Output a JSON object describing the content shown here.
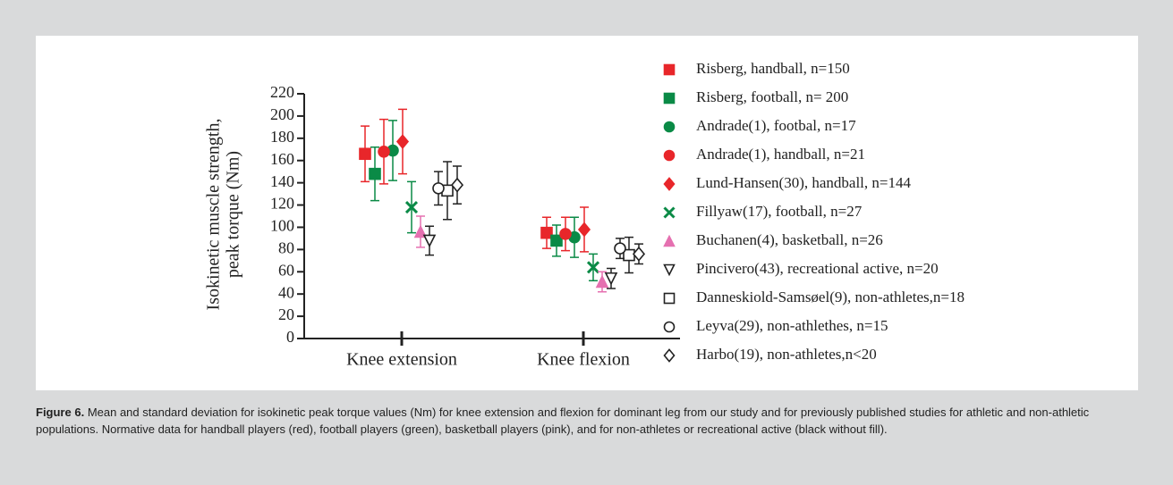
{
  "chart_data": {
    "type": "scatter",
    "y_label": [
      "Isokinetic muscle strength,",
      "peak torque (Nm)"
    ],
    "categories": [
      "Knee extension",
      "Knee flexion"
    ],
    "ylim": [
      0,
      220
    ],
    "yticks": [
      0,
      20,
      40,
      60,
      80,
      100,
      120,
      140,
      160,
      180,
      200,
      220
    ],
    "series": [
      {
        "name": "Risberg, handball, n=150",
        "color": "#e8262a",
        "marker": "square",
        "fill": true,
        "values": [
          166,
          95
        ],
        "errors": [
          25,
          14
        ]
      },
      {
        "name": "Risberg, football, n= 200",
        "color": "#0a8a46",
        "marker": "square",
        "fill": true,
        "values": [
          148,
          88
        ],
        "errors": [
          24,
          14
        ]
      },
      {
        "name": "Andrade(1), footbal, n=17",
        "color": "#0a8a46",
        "marker": "circle",
        "fill": true,
        "values": [
          169,
          91
        ],
        "errors": [
          27,
          18
        ]
      },
      {
        "name": "Andrade(1), handball, n=21",
        "color": "#e8262a",
        "marker": "circle",
        "fill": true,
        "values": [
          168,
          94
        ],
        "errors": [
          29,
          15
        ]
      },
      {
        "name": "Lund-Hansen(30), handball, n=144",
        "color": "#e8262a",
        "marker": "diamond",
        "fill": true,
        "values": [
          177,
          98
        ],
        "errors": [
          29,
          20
        ]
      },
      {
        "name": "Fillyaw(17), football, n=27",
        "color": "#0a8a46",
        "marker": "x",
        "fill": true,
        "values": [
          118,
          64
        ],
        "errors": [
          23,
          12
        ]
      },
      {
        "name": "Buchanen(4), basketball, n=26",
        "color": "#e570b0",
        "marker": "triangle",
        "fill": true,
        "values": [
          96,
          51
        ],
        "errors": [
          14,
          9
        ]
      },
      {
        "name": "Pincivero(43), recreational active, n=20",
        "color": "#222222",
        "marker": "triangle-down",
        "fill": false,
        "values": [
          88,
          54
        ],
        "errors": [
          13,
          9
        ]
      },
      {
        "name": "Danneskiold-Samsøel(9), non-athletes,n=18",
        "color": "#222222",
        "marker": "square",
        "fill": false,
        "values": [
          133,
          75
        ],
        "errors": [
          26,
          16
        ]
      },
      {
        "name": "Leyva(29), non-athlethes, n=15",
        "color": "#222222",
        "marker": "circle",
        "fill": false,
        "values": [
          135,
          81
        ],
        "errors": [
          15,
          9
        ]
      },
      {
        "name": "Harbo(19), non-athletes,n<20",
        "color": "#222222",
        "marker": "diamond",
        "fill": false,
        "values": [
          138,
          76
        ],
        "errors": [
          17,
          9
        ]
      }
    ]
  },
  "caption_label": "Figure 6.",
  "caption": "Mean and standard deviation for isokinetic peak torque values (Nm) for knee extension and flexion for dominant leg from our study and for previously published studies for athletic and non-athletic populations. Normative data for handball players (red), football players (green), basketball players (pink), and for non-athletes or recreational active (black without fill)."
}
